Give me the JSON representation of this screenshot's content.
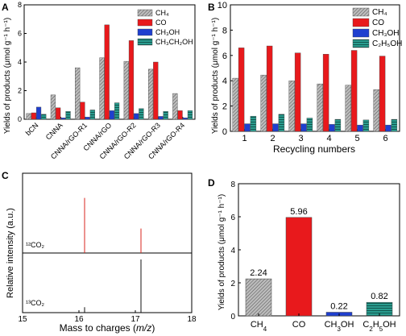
{
  "colors": {
    "ch4_fill": "#bdbdbd",
    "ch4_hatch": "#555555",
    "co": "#e8191c",
    "ch3oh": "#1f3fcf",
    "ethanol": "#2a9d8f",
    "ethanol_hatch": "#0e4f48",
    "trace_12": "#d9261c",
    "trace_13": "#111111"
  },
  "chart_data": [
    {
      "panel": "A",
      "type": "bar",
      "ylabel": "Yields of products (μmol g⁻¹ h⁻¹)",
      "ylim": [
        0,
        8
      ],
      "yticks": [
        0,
        2,
        4,
        6,
        8
      ],
      "categories": [
        "bCN",
        "CNNA",
        "CNNA/rGO-R1",
        "CNNA/rGO",
        "CNNA/rGO-R2",
        "CNNA/rGO-R3",
        "CNNA/rGO-R4"
      ],
      "series": [
        {
          "name": "CH₄",
          "values": [
            0.4,
            1.7,
            3.6,
            4.3,
            4.05,
            3.5,
            1.8
          ]
        },
        {
          "name": "CO",
          "values": [
            0.45,
            0.8,
            1.2,
            6.6,
            5.5,
            4.0,
            0.6
          ]
        },
        {
          "name": "CH₃OH",
          "values": [
            0.85,
            0.1,
            0.15,
            0.6,
            0.4,
            0.2,
            0.1
          ]
        },
        {
          "name": "CH₃CH₂OH",
          "values": [
            0.35,
            0.55,
            0.65,
            1.15,
            0.75,
            0.55,
            0.6
          ]
        }
      ],
      "legend_position": "top-right"
    },
    {
      "panel": "B",
      "type": "bar",
      "xlabel": "Recycling numbers",
      "ylabel": "Yields of products (μmol g⁻¹ h⁻¹)",
      "ylim": [
        0,
        10
      ],
      "yticks": [
        0,
        2,
        4,
        6,
        8,
        10
      ],
      "categories": [
        "1",
        "2",
        "3",
        "4",
        "5",
        "6"
      ],
      "series": [
        {
          "name": "CH₄",
          "values": [
            4.2,
            4.45,
            4.0,
            3.75,
            3.65,
            3.3
          ]
        },
        {
          "name": "CO",
          "values": [
            6.6,
            6.75,
            6.2,
            6.1,
            6.4,
            5.95
          ]
        },
        {
          "name": "CH₃OH",
          "values": [
            0.6,
            0.6,
            0.6,
            0.55,
            0.5,
            0.5
          ]
        },
        {
          "name": "C₂H₅OH",
          "values": [
            1.2,
            1.35,
            1.05,
            0.95,
            0.9,
            0.95
          ]
        }
      ],
      "legend_position": "top-right"
    },
    {
      "panel": "C",
      "type": "line",
      "xlabel": "Mass to charges (m/z)",
      "ylabel": "Relative intensity (a.u.)",
      "xlim": [
        15,
        18
      ],
      "xticks": [
        15,
        16,
        17,
        18
      ],
      "traces": [
        {
          "name": "¹²CO₂",
          "peaks": [
            {
              "x": 16.1,
              "h": 0.72
            },
            {
              "x": 17.1,
              "h": 0.32
            }
          ]
        },
        {
          "name": "¹³CO₂",
          "peaks": [
            {
              "x": 16.1,
              "h": 0.1
            },
            {
              "x": 17.1,
              "h": 0.97
            }
          ]
        }
      ]
    },
    {
      "panel": "D",
      "type": "bar",
      "ylabel": "Yields of products (μmol g⁻¹ h⁻¹)",
      "ylim": [
        0,
        8
      ],
      "yticks": [
        0,
        2,
        4,
        6,
        8
      ],
      "categories": [
        "CH₄",
        "CO",
        "CH₃OH",
        "C₂H₅OH"
      ],
      "values": [
        2.24,
        5.96,
        0.22,
        0.82
      ],
      "value_labels": [
        "2.24",
        "5.96",
        "0.22",
        "0.82"
      ]
    }
  ],
  "panels": {
    "a": {
      "letter": "A"
    },
    "b": {
      "letter": "B"
    },
    "c": {
      "letter": "C"
    },
    "d": {
      "letter": "D"
    }
  }
}
